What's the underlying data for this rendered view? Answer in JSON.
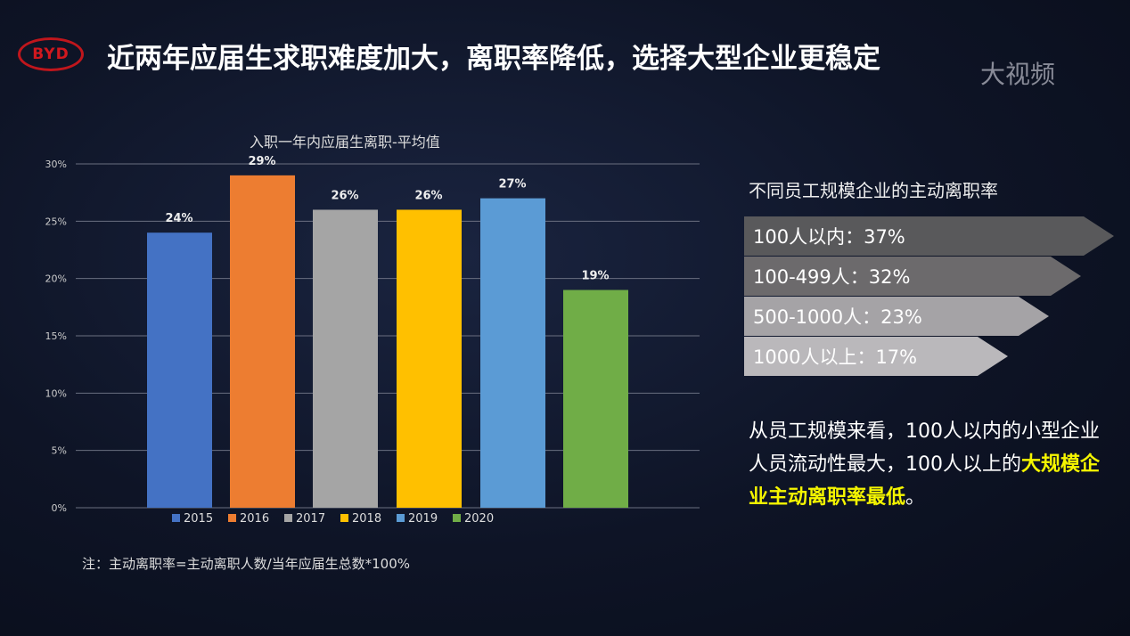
{
  "header": {
    "logo": "BYD",
    "title": "近两年应届生求职难度加大，离职率降低，选择大型企业更稳定",
    "watermark": "大视频"
  },
  "chart_data": {
    "type": "bar",
    "title": "入职一年内应届生离职-平均值",
    "categories": [
      "2015",
      "2016",
      "2017",
      "2018",
      "2019",
      "2020"
    ],
    "values": [
      24,
      29,
      26,
      26,
      27,
      19
    ],
    "value_labels": [
      "24%",
      "29%",
      "26%",
      "26%",
      "27%",
      "19%"
    ],
    "colors": [
      "#4472c4",
      "#ed7d31",
      "#a5a5a5",
      "#ffc000",
      "#5b9bd5",
      "#70ad47"
    ],
    "yticks": [
      "0%",
      "5%",
      "10%",
      "15%",
      "20%",
      "25%",
      "30%"
    ],
    "ylim": [
      0,
      30
    ],
    "grid": true,
    "legend": "bottom"
  },
  "right": {
    "title": "不同员工规模企业的主动离职率",
    "items": [
      {
        "label": "100人以内：37%",
        "value": 37,
        "color": "#59595b"
      },
      {
        "label": "100-499人：32%",
        "value": 32,
        "color": "#6c6a6c"
      },
      {
        "label": "500-1000人：23%",
        "value": 23,
        "color": "#a5a3a6"
      },
      {
        "label": "1000人以上：17%",
        "value": 17,
        "color": "#bab8bb"
      }
    ],
    "desc_pre": "从员工规模来看，100人以内的小型企业人员流动性最大，100人以上的",
    "desc_highlight": "大规模企业主动离职率最低",
    "desc_post": "。"
  },
  "note": "注：主动离职率=主动离职人数/当年应届生总数*100%"
}
